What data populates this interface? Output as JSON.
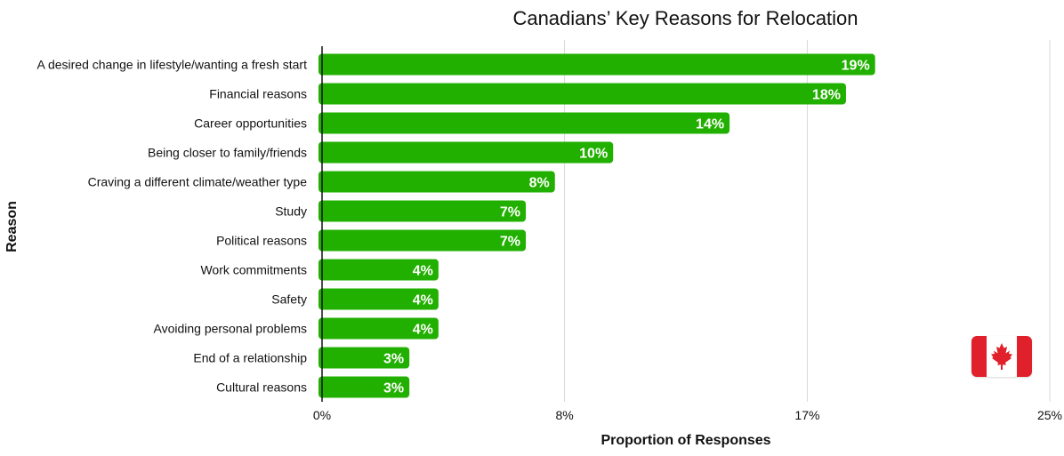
{
  "chart_data": {
    "type": "bar",
    "orientation": "horizontal",
    "title": "Canadians’ Key Reasons for Relocation",
    "xlabel": "Proportion of Responses",
    "ylabel": "Reason",
    "xlim": [
      0,
      25
    ],
    "xticks": [
      {
        "value": 0,
        "label": "0%"
      },
      {
        "value": 8.33,
        "label": "8%"
      },
      {
        "value": 16.67,
        "label": "17%"
      },
      {
        "value": 25,
        "label": "25%"
      }
    ],
    "grid": true,
    "categories": [
      "A desired change in lifestyle/wanting a fresh start",
      "Financial reasons",
      "Career opportunities",
      "Being closer to family/friends",
      "Craving a different climate/weather type",
      "Study",
      "Political reasons",
      "Work commitments",
      "Safety",
      "Avoiding personal problems",
      "End of a relationship",
      "Cultural reasons"
    ],
    "values": [
      19,
      18,
      14,
      10,
      8,
      7,
      7,
      4,
      4,
      4,
      3,
      3
    ],
    "data_labels": [
      "19%",
      "18%",
      "14%",
      "10%",
      "8%",
      "7%",
      "7%",
      "4%",
      "4%",
      "4%",
      "3%",
      "3%"
    ],
    "colors": {
      "bar": "#22b000",
      "grid": "#d9d9d9",
      "axis": "#111111"
    }
  },
  "decoration": {
    "flag_icon": "canada-flag-icon"
  }
}
